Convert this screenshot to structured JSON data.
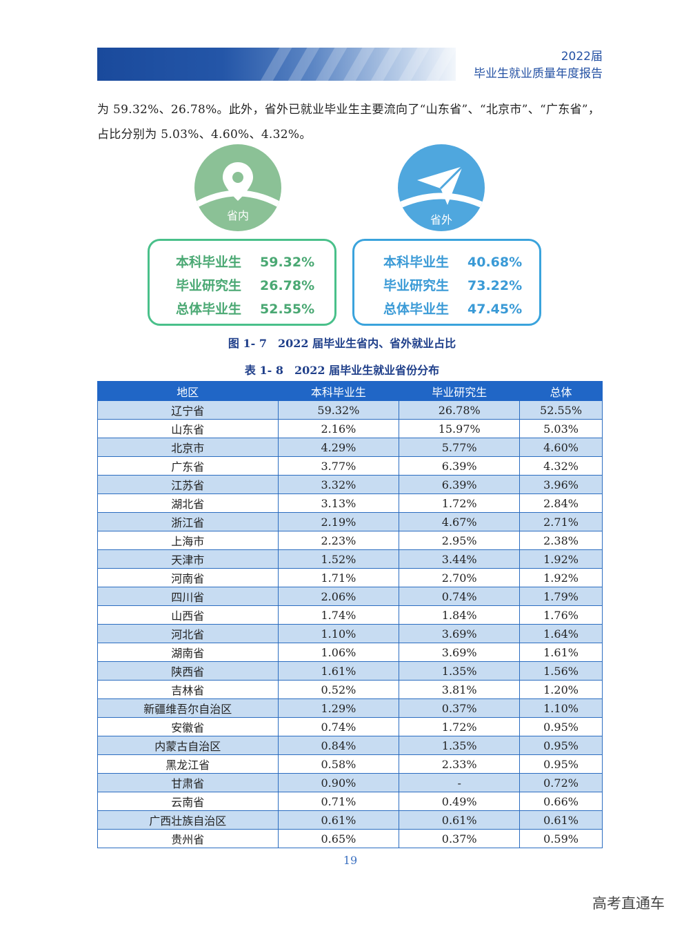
{
  "header": {
    "year_label": "2022届",
    "report_title": "毕业生就业质量年度报告"
  },
  "paragraph": "为 59.32%、26.78%。此外，省外已就业毕业生主要流向了“山东省”、“北京市”、“广东省”，占比分别为 5.03%、4.60%、4.32%。",
  "figure": {
    "caption": "图 1- 7　2022 届毕业生省内、省外就业占比",
    "panels": [
      {
        "label": "省内",
        "icon": "location-pin-icon",
        "color": "#8bc196",
        "rows": [
          {
            "label": "本科毕业生",
            "value": "59.32%"
          },
          {
            "label": "毕业研究生",
            "value": "26.78%"
          },
          {
            "label": "总体毕业生",
            "value": "52.55%"
          }
        ]
      },
      {
        "label": "省外",
        "icon": "paper-plane-icon",
        "color": "#4fa7de",
        "rows": [
          {
            "label": "本科毕业生",
            "value": "40.68%"
          },
          {
            "label": "毕业研究生",
            "value": "73.22%"
          },
          {
            "label": "总体毕业生",
            "value": "47.45%"
          }
        ]
      }
    ]
  },
  "table": {
    "caption": "表 1- 8　2022 届毕业生就业省份分布",
    "headers": [
      "地区",
      "本科毕业生",
      "毕业研究生",
      "总体"
    ],
    "rows": [
      [
        "辽宁省",
        "59.32%",
        "26.78%",
        "52.55%"
      ],
      [
        "山东省",
        "2.16%",
        "15.97%",
        "5.03%"
      ],
      [
        "北京市",
        "4.29%",
        "5.77%",
        "4.60%"
      ],
      [
        "广东省",
        "3.77%",
        "6.39%",
        "4.32%"
      ],
      [
        "江苏省",
        "3.32%",
        "6.39%",
        "3.96%"
      ],
      [
        "湖北省",
        "3.13%",
        "1.72%",
        "2.84%"
      ],
      [
        "浙江省",
        "2.19%",
        "4.67%",
        "2.71%"
      ],
      [
        "上海市",
        "2.23%",
        "2.95%",
        "2.38%"
      ],
      [
        "天津市",
        "1.52%",
        "3.44%",
        "1.92%"
      ],
      [
        "河南省",
        "1.71%",
        "2.70%",
        "1.92%"
      ],
      [
        "四川省",
        "2.06%",
        "0.74%",
        "1.79%"
      ],
      [
        "山西省",
        "1.74%",
        "1.84%",
        "1.76%"
      ],
      [
        "河北省",
        "1.10%",
        "3.69%",
        "1.64%"
      ],
      [
        "湖南省",
        "1.06%",
        "3.69%",
        "1.61%"
      ],
      [
        "陕西省",
        "1.61%",
        "1.35%",
        "1.56%"
      ],
      [
        "吉林省",
        "0.52%",
        "3.81%",
        "1.20%"
      ],
      [
        "新疆维吾尔自治区",
        "1.29%",
        "0.37%",
        "1.10%"
      ],
      [
        "安徽省",
        "0.74%",
        "1.72%",
        "0.95%"
      ],
      [
        "内蒙古自治区",
        "0.84%",
        "1.35%",
        "0.95%"
      ],
      [
        "黑龙江省",
        "0.58%",
        "2.33%",
        "0.95%"
      ],
      [
        "甘肃省",
        "0.90%",
        "-",
        "0.72%"
      ],
      [
        "云南省",
        "0.71%",
        "0.49%",
        "0.66%"
      ],
      [
        "广西壮族自治区",
        "0.61%",
        "0.61%",
        "0.61%"
      ],
      [
        "贵州省",
        "0.65%",
        "0.37%",
        "0.59%"
      ]
    ]
  },
  "page_number": "19",
  "watermark": "高考直通车"
}
